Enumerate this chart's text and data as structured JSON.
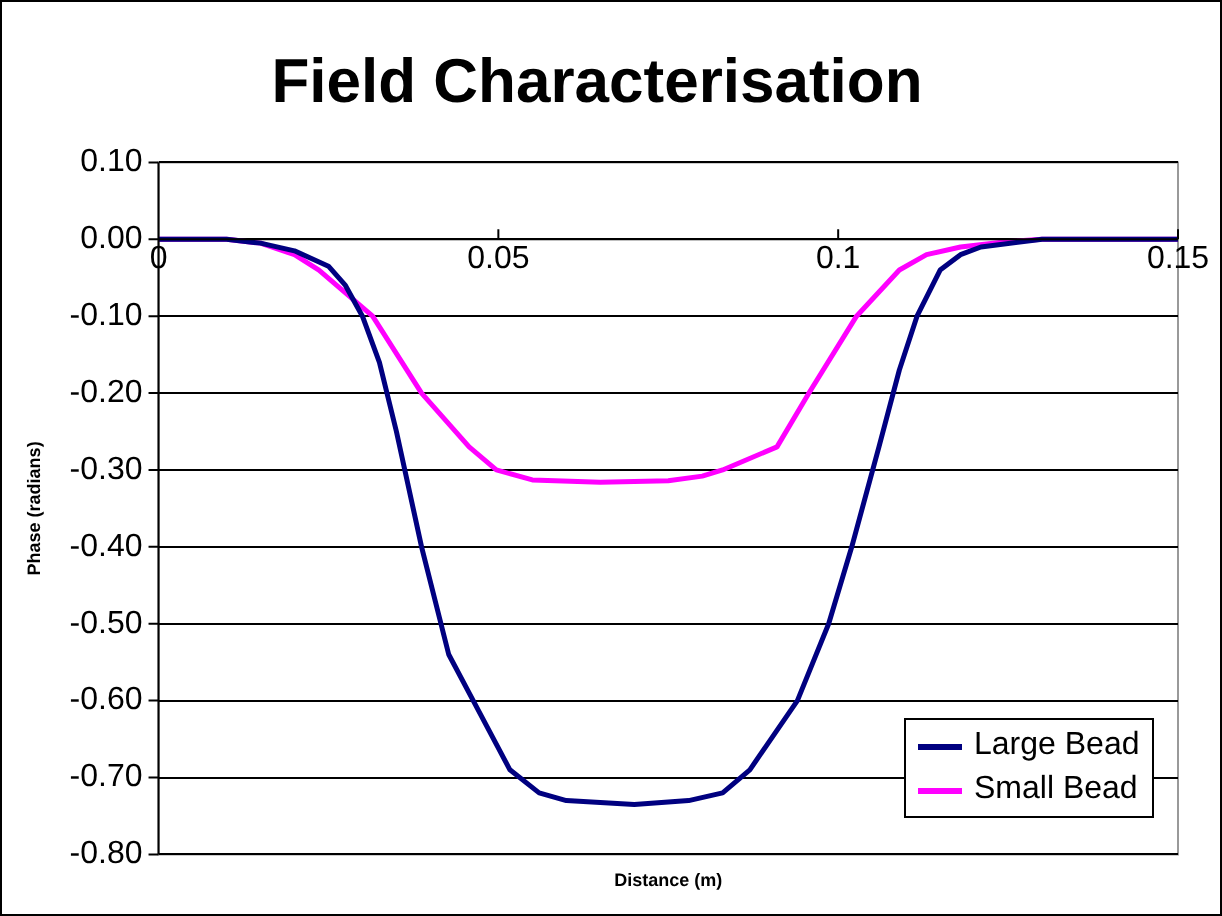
{
  "chart_data": {
    "type": "line",
    "title": "Field Characterisation",
    "xlabel": "Distance (m)",
    "ylabel": "Phase (radians)",
    "xlim": [
      0,
      0.15
    ],
    "xticks": [
      0,
      0.05,
      0.1,
      0.15
    ],
    "ylim": [
      -0.8,
      0.1
    ],
    "yticks": [
      {
        "value": 0.1,
        "label": "0.10"
      },
      {
        "value": 0,
        "label": "0.00"
      },
      {
        "value": -0.1,
        "label": "-0.10"
      },
      {
        "value": -0.2,
        "label": "-0.20"
      },
      {
        "value": -0.3,
        "label": "-0.30"
      },
      {
        "value": -0.4,
        "label": "-0.40"
      },
      {
        "value": -0.5,
        "label": "-0.50"
      },
      {
        "value": -0.6,
        "label": "-0.60"
      },
      {
        "value": -0.7,
        "label": "-0.70"
      },
      {
        "value": -0.8,
        "label": "-0.80"
      }
    ],
    "grid": "y",
    "legend": "bottom right",
    "marker": "none",
    "line_style": "solid",
    "series": [
      {
        "name": "Large Bead",
        "color": "#000080",
        "x": [
          0,
          0.01,
          0.015,
          0.02,
          0.025,
          0.0275,
          0.03,
          0.0325,
          0.035,
          0.0387,
          0.0427,
          0.0463,
          0.0517,
          0.056,
          0.06,
          0.07,
          0.078,
          0.083,
          0.087,
          0.094,
          0.0986,
          0.102,
          0.106,
          0.109,
          0.1116,
          0.115,
          0.118,
          0.121,
          0.13,
          0.14,
          0.15
        ],
        "values": [
          0,
          0,
          -0.005,
          -0.015,
          -0.035,
          -0.06,
          -0.1,
          -0.16,
          -0.25,
          -0.4,
          -0.54,
          -0.6,
          -0.69,
          -0.72,
          -0.73,
          -0.735,
          -0.73,
          -0.72,
          -0.69,
          -0.6,
          -0.5,
          -0.4,
          -0.27,
          -0.17,
          -0.1,
          -0.04,
          -0.02,
          -0.01,
          0,
          0,
          0
        ]
      },
      {
        "name": "Small Bead",
        "color": "#ff00ff",
        "x": [
          0,
          0.01,
          0.015,
          0.02,
          0.0236,
          0.0315,
          0.0387,
          0.0457,
          0.0497,
          0.055,
          0.065,
          0.075,
          0.08,
          0.083,
          0.091,
          0.0957,
          0.1027,
          0.109,
          0.113,
          0.118,
          0.125,
          0.13,
          0.15
        ],
        "values": [
          0,
          0,
          -0.005,
          -0.02,
          -0.04,
          -0.1,
          -0.2,
          -0.27,
          -0.3,
          -0.313,
          -0.316,
          -0.314,
          -0.308,
          -0.3,
          -0.27,
          -0.2,
          -0.1,
          -0.04,
          -0.02,
          -0.01,
          -0.003,
          0,
          0
        ]
      }
    ]
  }
}
